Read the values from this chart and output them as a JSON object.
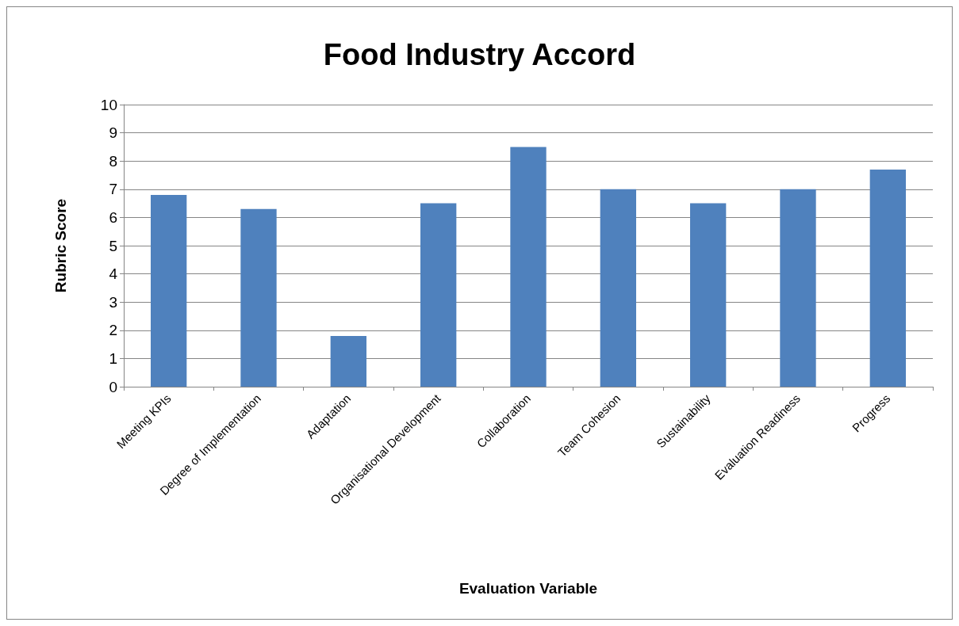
{
  "chart_data": {
    "type": "bar",
    "title": "Food Industry Accord",
    "xlabel": "Evaluation Variable",
    "ylabel": "Rubric Score",
    "categories": [
      "Meeting KPIs",
      "Degree of Implementation",
      "Adaptation",
      "Organisational Development",
      "Collaboration",
      "Team Cohesion",
      "Sustainability",
      "Evaluation Readiness",
      "Progress"
    ],
    "values": [
      6.8,
      6.3,
      1.8,
      6.5,
      8.5,
      7.0,
      6.5,
      7.0,
      7.7
    ],
    "color": "#4f81bd",
    "ylim": [
      0,
      10
    ],
    "yticks": [
      0,
      1,
      2,
      3,
      4,
      5,
      6,
      7,
      8,
      9,
      10
    ],
    "grid": "y"
  }
}
